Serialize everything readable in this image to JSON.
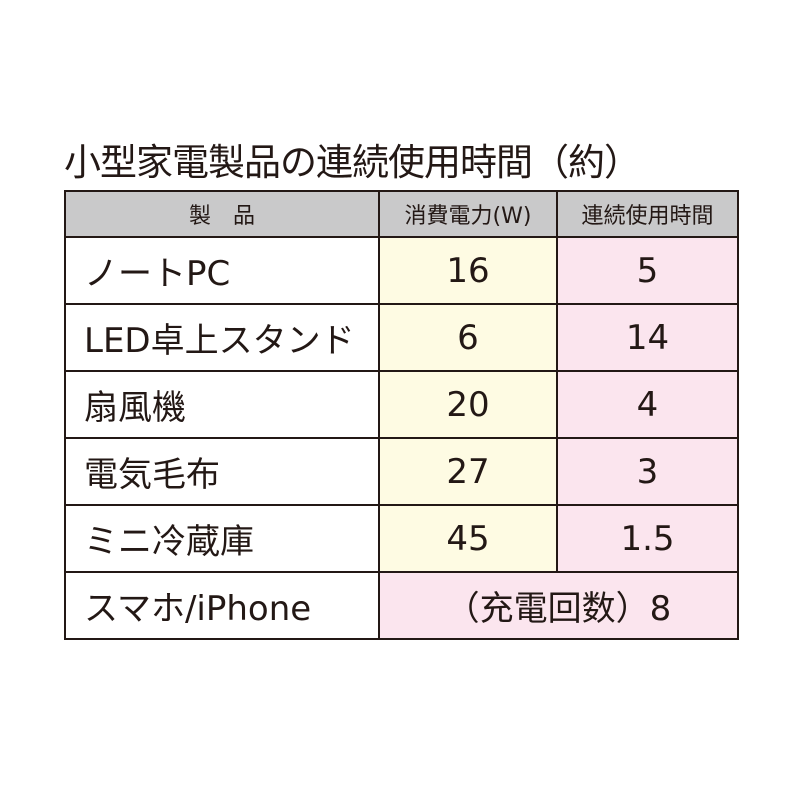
{
  "title": "小型家電製品の連続使用時間（約）",
  "headers": [
    "製　品",
    "消費電力(W)",
    "連続使用時間"
  ],
  "rows": [
    {
      "name": "ノートPC",
      "watts": "16",
      "hours": "5"
    },
    {
      "name": "LED卓上スタンド",
      "watts": "6",
      "hours": "14"
    },
    {
      "name": "扇風機",
      "watts": "20",
      "hours": "4"
    },
    {
      "name": "電気毛布",
      "watts": "27",
      "hours": "3"
    },
    {
      "name": "ミニ冷蔵庫",
      "watts": "45",
      "hours": "1.5"
    }
  ],
  "last_row": {
    "name": "スマホ/iPhone",
    "merged": "（充電回数）8"
  },
  "colors": {
    "header": "#c9c9ca",
    "watts_col": "#fefbe3",
    "hours_col": "#fbe5ee",
    "text": "#231815"
  }
}
